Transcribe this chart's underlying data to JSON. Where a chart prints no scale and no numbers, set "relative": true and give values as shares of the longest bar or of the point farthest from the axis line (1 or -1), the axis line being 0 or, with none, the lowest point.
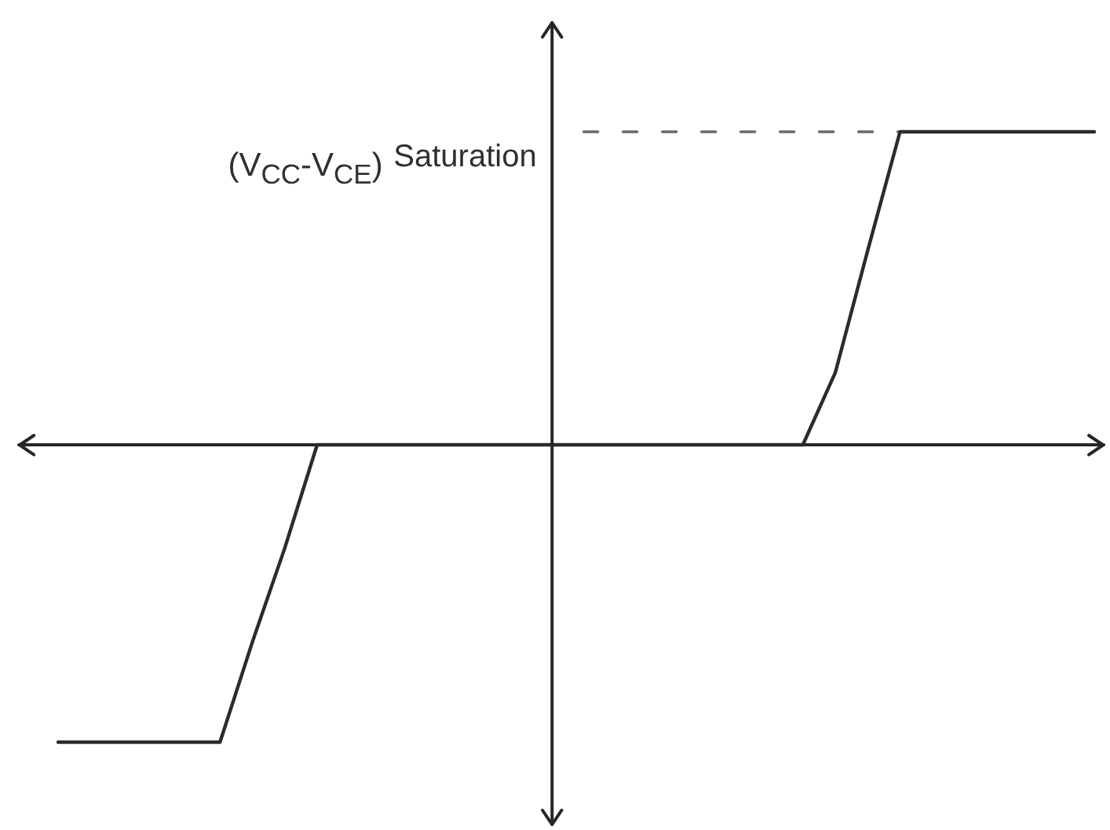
{
  "chart_data": {
    "type": "line",
    "relative": true,
    "categories": [
      null,
      null,
      null,
      null,
      null,
      null,
      null,
      null,
      null,
      null,
      null,
      null,
      null,
      null,
      null,
      null,
      null,
      null,
      null,
      null,
      null,
      null,
      null,
      null,
      null,
      null,
      null,
      null,
      null,
      null,
      null,
      null,
      null
    ],
    "values": [
      -0.95,
      -0.95,
      -0.95,
      -0.95,
      -0.95,
      -0.95,
      -0.63,
      -0.33,
      0,
      0,
      0,
      0,
      0,
      0,
      0,
      0,
      0,
      0,
      0,
      0,
      0,
      0,
      0,
      0,
      0.23,
      0.62,
      1,
      1,
      1,
      1,
      1,
      1,
      1
    ],
    "color": "#2b2b2b",
    "ref_lines": [
      {
        "axis": "y",
        "value": 1,
        "label": "Saturation",
        "line_style": "dashed",
        "color": "#6a6a6a"
      }
    ],
    "annotations": [
      "(V$_{CC}$-V$_{CE}$)"
    ]
  }
}
